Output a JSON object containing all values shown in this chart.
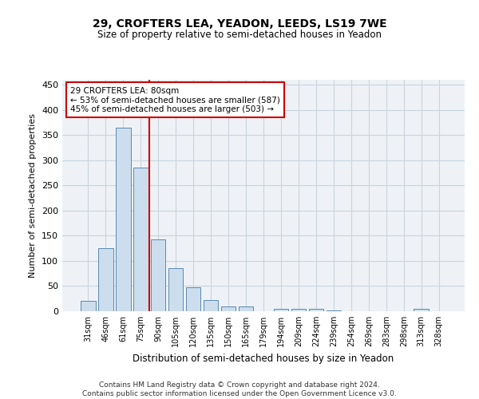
{
  "title": "29, CROFTERS LEA, YEADON, LEEDS, LS19 7WE",
  "subtitle": "Size of property relative to semi-detached houses in Yeadon",
  "xlabel": "Distribution of semi-detached houses by size in Yeadon",
  "ylabel": "Number of semi-detached properties",
  "footer_line1": "Contains HM Land Registry data © Crown copyright and database right 2024.",
  "footer_line2": "Contains public sector information licensed under the Open Government Licence v3.0.",
  "bar_labels": [
    "31sqm",
    "46sqm",
    "61sqm",
    "75sqm",
    "90sqm",
    "105sqm",
    "120sqm",
    "135sqm",
    "150sqm",
    "165sqm",
    "179sqm",
    "194sqm",
    "209sqm",
    "224sqm",
    "239sqm",
    "254sqm",
    "269sqm",
    "283sqm",
    "298sqm",
    "313sqm",
    "328sqm"
  ],
  "bar_values": [
    20,
    125,
    365,
    285,
    143,
    85,
    47,
    22,
    10,
    10,
    0,
    5,
    5,
    4,
    2,
    0,
    0,
    0,
    0,
    4,
    0
  ],
  "bar_color": "#ccdded",
  "bar_edge_color": "#5a8ab0",
  "marker_line_color": "#cc0000",
  "annotation_line1": "29 CROFTERS LEA: 80sqm",
  "annotation_line2": "← 53% of semi-detached houses are smaller (587)",
  "annotation_line3": "45% of semi-detached houses are larger (503) →",
  "ylim": [
    0,
    460
  ],
  "yticks": [
    0,
    50,
    100,
    150,
    200,
    250,
    300,
    350,
    400,
    450
  ],
  "grid_color": "#c8d4de",
  "background_color": "#eef2f6"
}
